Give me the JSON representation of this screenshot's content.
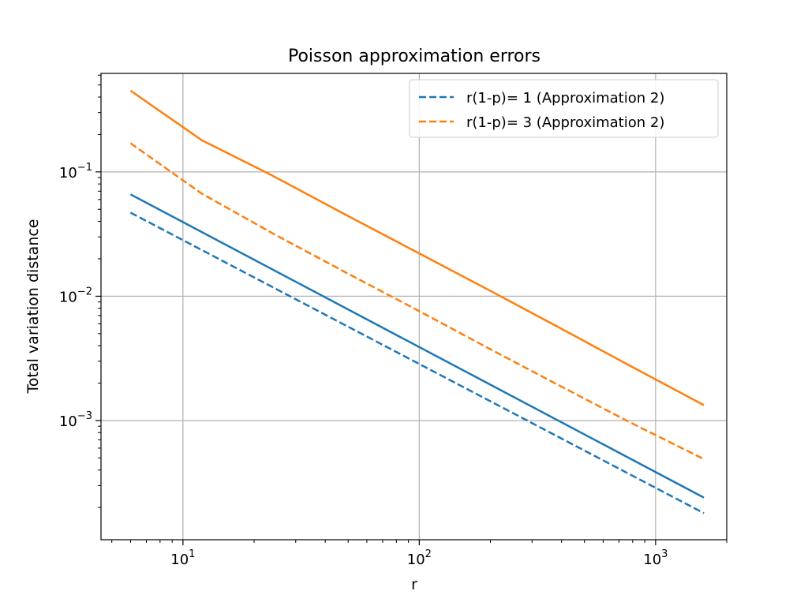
{
  "chart_data": {
    "type": "line",
    "title": "Poisson approximation errors",
    "xlabel": "r",
    "ylabel": "Total variation distance",
    "xscale": "log",
    "yscale": "log",
    "xlim": [
      4.5,
      2000
    ],
    "ylim": [
      0.00011,
      0.62
    ],
    "grid": true,
    "legend_position": "top-right",
    "x_ticks": [
      {
        "value": 10,
        "base": "10",
        "exp": "1"
      },
      {
        "value": 100,
        "base": "10",
        "exp": "2"
      },
      {
        "value": 1000,
        "base": "10",
        "exp": "3"
      }
    ],
    "y_ticks": [
      {
        "value": 0.001,
        "base": "10",
        "exp": "−3"
      },
      {
        "value": 0.01,
        "base": "10",
        "exp": "−2"
      },
      {
        "value": 0.1,
        "base": "10",
        "exp": "−1"
      }
    ],
    "series": [
      {
        "name": "r(1-p)= 1 (Approximation 2)",
        "in_legend": true,
        "color": "#1f77b4",
        "dash": "dashed",
        "x": [
          6,
          1600
        ],
        "y": [
          0.047,
          0.00018
        ]
      },
      {
        "name": "r(1-p)= 3 (Approximation 2)",
        "in_legend": true,
        "color": "#ff7f0e",
        "dash": "dashed",
        "x": [
          6,
          12,
          24,
          48,
          96,
          192,
          384,
          768,
          1600
        ],
        "y": [
          0.17,
          0.067,
          0.032,
          0.0158,
          0.0079,
          0.0039,
          0.00195,
          0.00098,
          0.00049
        ]
      },
      {
        "name": "r(1-p)= 1",
        "in_legend": false,
        "color": "#1f77b4",
        "dash": "solid",
        "x": [
          6,
          1600
        ],
        "y": [
          0.066,
          0.00024
        ]
      },
      {
        "name": "r(1-p)= 3",
        "in_legend": false,
        "color": "#ff7f0e",
        "dash": "solid",
        "x": [
          6,
          12,
          24,
          48,
          96,
          192,
          384,
          768,
          1600
        ],
        "y": [
          0.45,
          0.18,
          0.093,
          0.046,
          0.023,
          0.0115,
          0.0057,
          0.0028,
          0.00133
        ]
      }
    ]
  }
}
